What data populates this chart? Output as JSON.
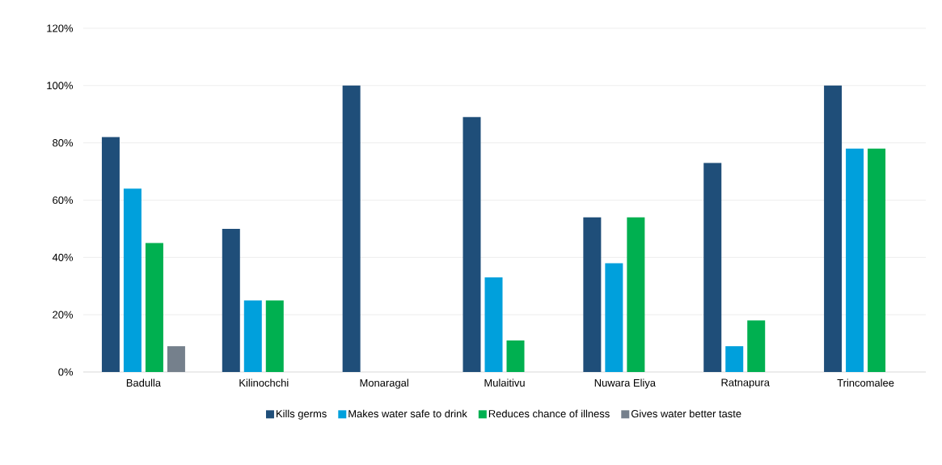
{
  "chart_data": {
    "type": "bar",
    "categories": [
      "Badulla",
      "Kilinochchi",
      "Monaragal",
      "Mulaitivu",
      "Nuwara Eliya",
      "Ratnapura",
      "Trincomalee"
    ],
    "series": [
      {
        "name": "Kills germs",
        "color": "#1f4e79",
        "values": [
          82,
          50,
          100,
          89,
          54,
          73,
          100
        ]
      },
      {
        "name": "Makes water safe to drink",
        "color": "#00a0dc",
        "values": [
          64,
          25,
          0,
          33,
          38,
          9,
          78
        ]
      },
      {
        "name": "Reduces chance of illness",
        "color": "#00b050",
        "values": [
          45,
          25,
          0,
          11,
          54,
          18,
          78
        ]
      },
      {
        "name": "Gives water better taste",
        "color": "#75808c",
        "values": [
          9,
          0,
          0,
          0,
          0,
          0,
          0
        ]
      }
    ],
    "ylim": [
      0,
      120
    ],
    "yticks": [
      {
        "value": 0,
        "label": "0%"
      },
      {
        "value": 20,
        "label": "20%"
      },
      {
        "value": 40,
        "label": "40%"
      },
      {
        "value": 60,
        "label": "60%"
      },
      {
        "value": 80,
        "label": "80%"
      },
      {
        "value": 100,
        "label": "100%"
      },
      {
        "value": 120,
        "label": "120%"
      }
    ],
    "grid": "y",
    "legend": "bottom"
  }
}
